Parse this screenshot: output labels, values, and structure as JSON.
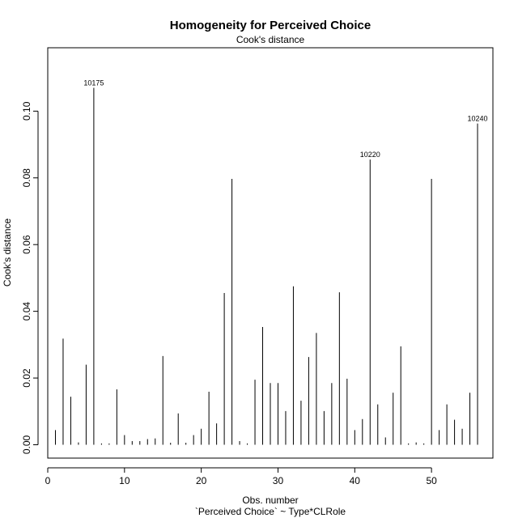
{
  "chart_data": {
    "type": "bar",
    "title": "Homogeneity for Perceived Choice",
    "subtitle": "Cook's distance",
    "xlabel": "Obs. number",
    "xlabel2": "`Perceived Choice` ~ Type*CLRole",
    "ylabel": "Cook's distance",
    "xlim": [
      0,
      58
    ],
    "ylim": [
      -0.004,
      0.119
    ],
    "x_ticks": [
      0,
      10,
      20,
      30,
      40,
      50
    ],
    "y_ticks": [
      0.0,
      0.02,
      0.04,
      0.06,
      0.08,
      0.1
    ],
    "y_tick_labels": [
      "0.00",
      "0.02",
      "0.04",
      "0.06",
      "0.08",
      "0.10"
    ],
    "grid": false,
    "x": [
      1,
      2,
      3,
      4,
      5,
      6,
      7,
      8,
      9,
      10,
      11,
      12,
      13,
      14,
      15,
      16,
      17,
      18,
      19,
      20,
      21,
      22,
      23,
      24,
      25,
      26,
      27,
      28,
      29,
      30,
      31,
      32,
      33,
      34,
      35,
      36,
      37,
      38,
      39,
      40,
      41,
      42,
      43,
      44,
      45,
      46,
      47,
      48,
      49,
      50,
      51,
      52,
      53,
      54,
      55,
      56
    ],
    "values": [
      0.0044,
      0.0318,
      0.0144,
      0.0007,
      0.024,
      0.107,
      0.0004,
      0.0004,
      0.0166,
      0.0029,
      0.0011,
      0.0011,
      0.0017,
      0.0019,
      0.0266,
      0.0006,
      0.0094,
      0.0006,
      0.0029,
      0.0048,
      0.0159,
      0.0064,
      0.0455,
      0.0797,
      0.0011,
      0.0004,
      0.0195,
      0.0353,
      0.0185,
      0.0185,
      0.0101,
      0.0475,
      0.0132,
      0.0263,
      0.0335,
      0.0101,
      0.0185,
      0.0457,
      0.0198,
      0.0044,
      0.0077,
      0.0855,
      0.0121,
      0.0022,
      0.0156,
      0.0295,
      0.0004,
      0.0007,
      0.0004,
      0.0797,
      0.0044,
      0.0121,
      0.0075,
      0.0048,
      0.0156,
      0.0963
    ],
    "annotations": [
      {
        "x": 6,
        "text": "10175"
      },
      {
        "x": 42,
        "text": "10220"
      },
      {
        "x": 56,
        "text": "10240"
      }
    ]
  }
}
